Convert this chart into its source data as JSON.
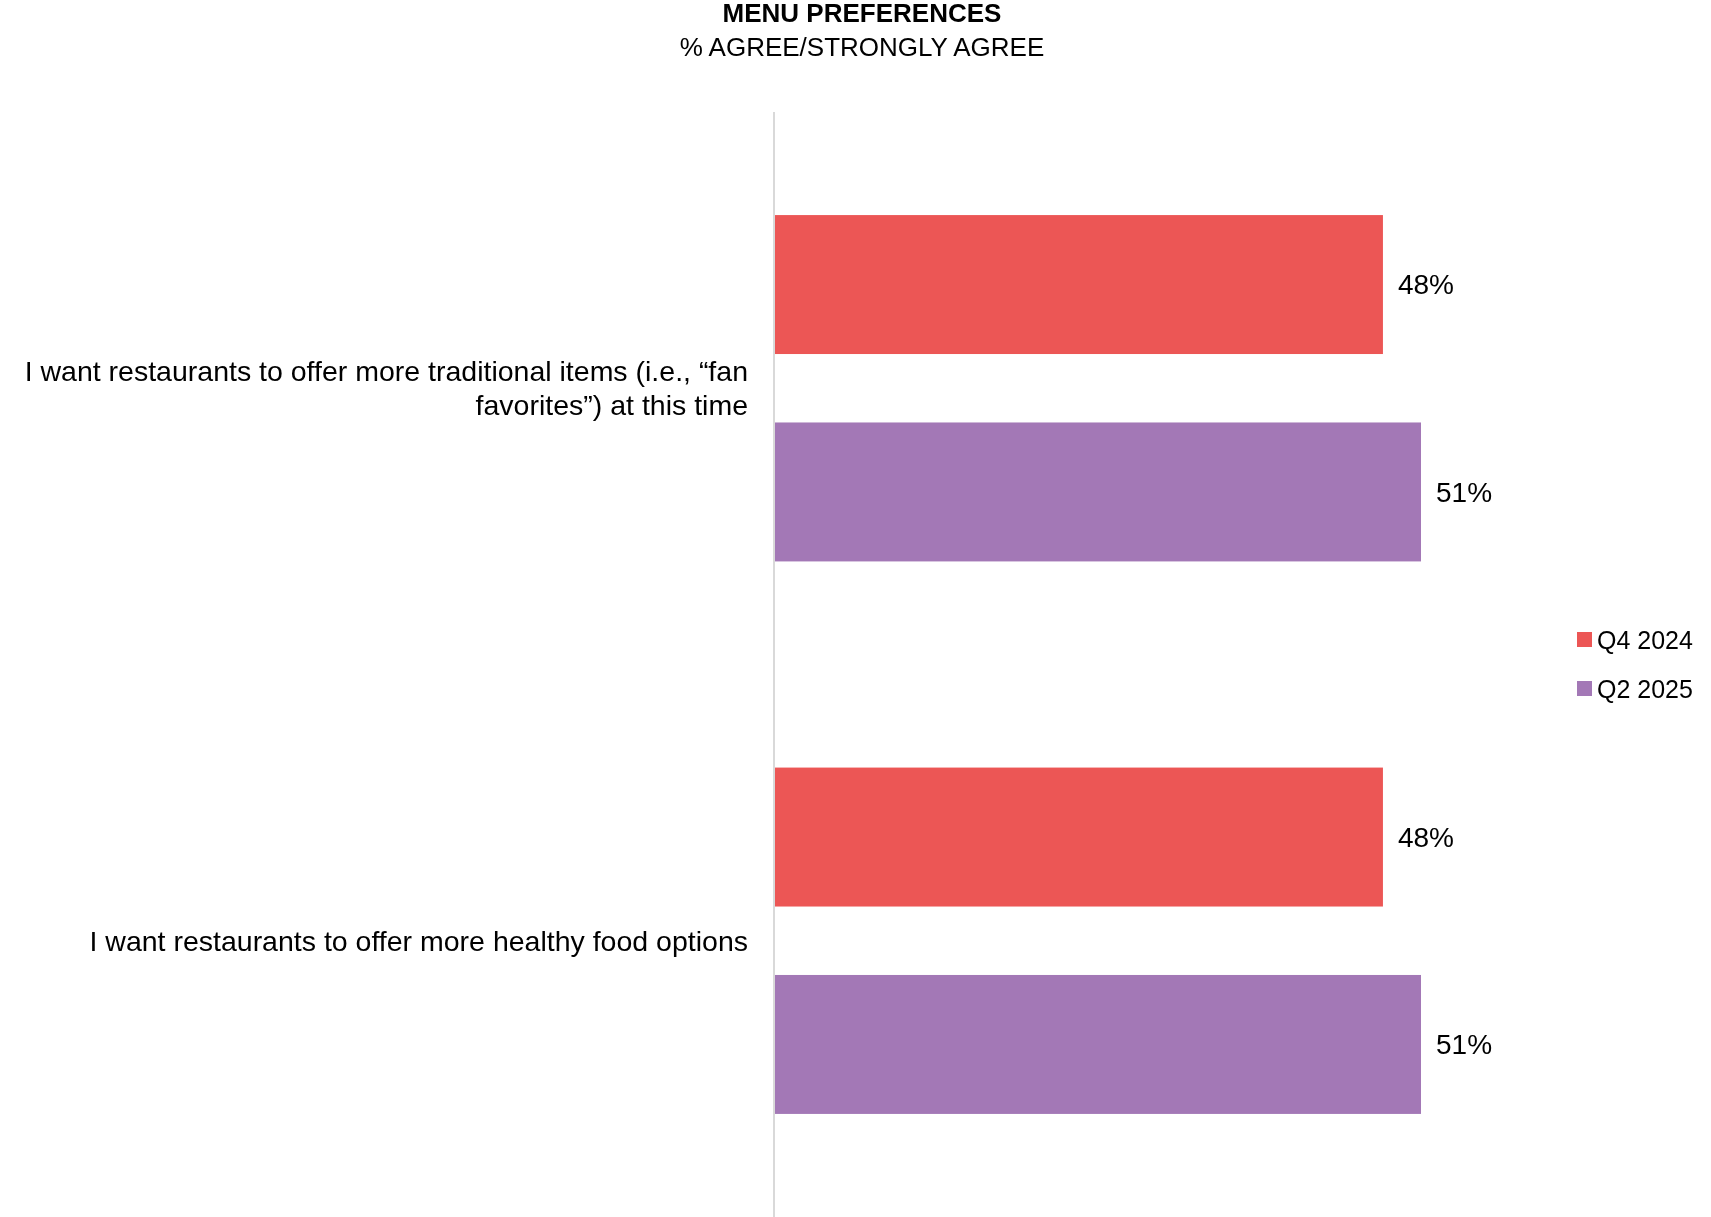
{
  "chart_data": {
    "type": "bar",
    "orientation": "horizontal",
    "title": "MENU PREFERENCES",
    "subtitle": "% AGREE/STRONGLY AGREE",
    "categories": [
      "I want restaurants to offer more traditional items (i.e., “fan favorites”) at this time",
      "I want restaurants to offer more healthy food options"
    ],
    "series": [
      {
        "name": "Q4 2024",
        "color": "#ec5655",
        "values": [
          48,
          48
        ],
        "value_labels": [
          "48%",
          "48%"
        ]
      },
      {
        "name": "Q2 2025",
        "color": "#a378b6",
        "values": [
          51,
          51
        ],
        "value_labels": [
          "51%",
          "51%"
        ]
      }
    ],
    "legend": "right"
  }
}
